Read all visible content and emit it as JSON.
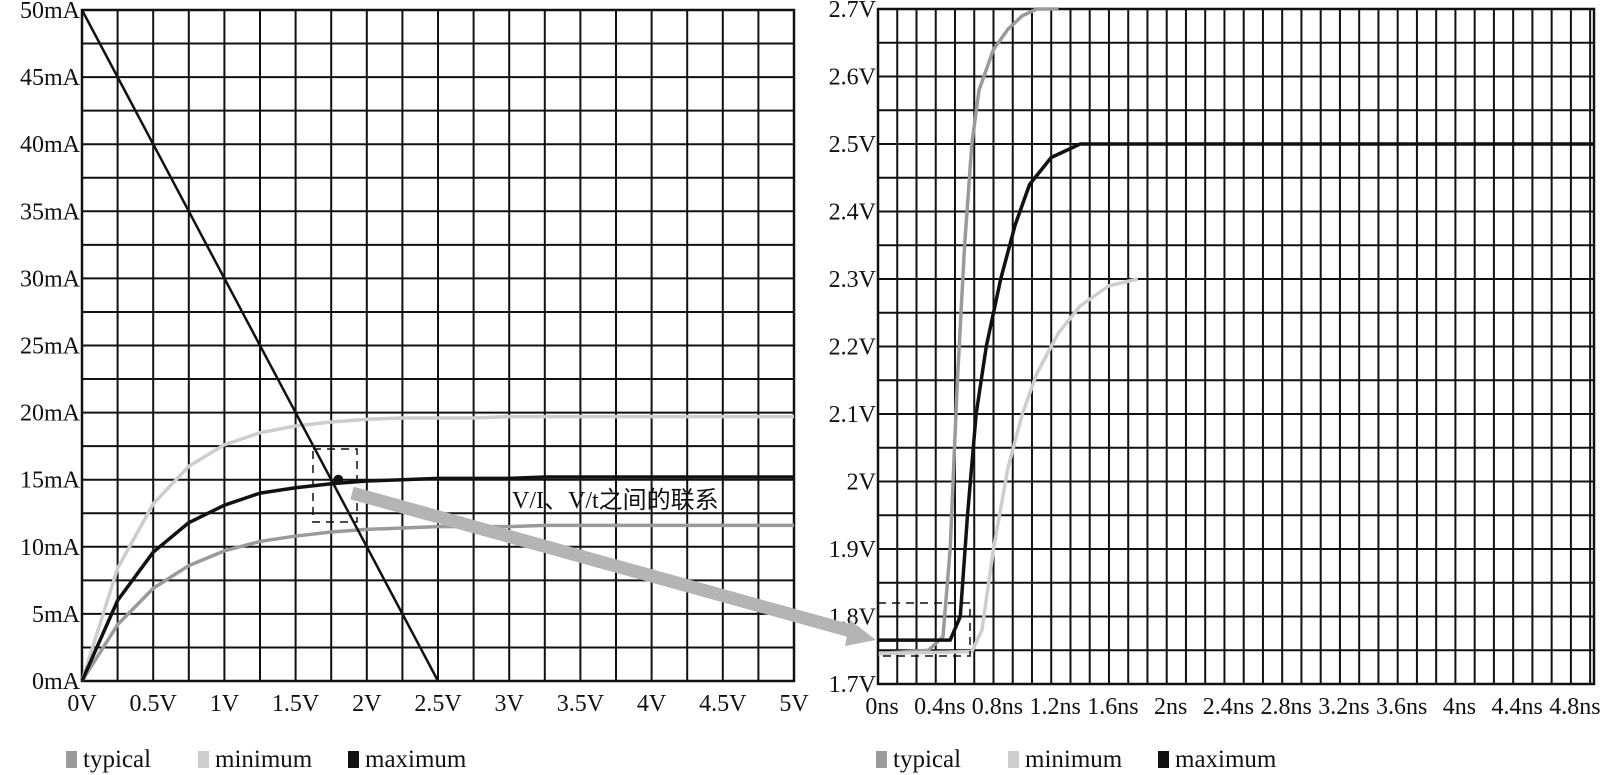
{
  "chart_data": [
    {
      "type": "line",
      "title": "",
      "xlabel": "",
      "ylabel": "",
      "xlim": [
        0,
        5
      ],
      "ylim": [
        0,
        50
      ],
      "grid": true,
      "x_ticks": [
        "0V",
        "0.5V",
        "1V",
        "1.5V",
        "2V",
        "2.5V",
        "3V",
        "3.5V",
        "4V",
        "4.5V",
        "5V"
      ],
      "x_tick_values": [
        0,
        0.5,
        1,
        1.5,
        2,
        2.5,
        3,
        3.5,
        4,
        4.5,
        5
      ],
      "y_ticks": [
        "0mA",
        "5mA",
        "10mA",
        "15mA",
        "20mA",
        "25mA",
        "30mA",
        "35mA",
        "40mA",
        "45mA",
        "50mA"
      ],
      "y_tick_values": [
        0,
        5,
        10,
        15,
        20,
        25,
        30,
        35,
        40,
        45,
        50
      ],
      "x": [
        0,
        0.25,
        0.5,
        0.75,
        1,
        1.25,
        1.5,
        1.75,
        2,
        2.25,
        2.5,
        2.75,
        3,
        3.25,
        3.5,
        3.75,
        4,
        4.25,
        4.5,
        4.75,
        5
      ],
      "series": [
        {
          "name": "typical",
          "color": "#9a9a9a",
          "values": [
            0,
            4.2,
            6.9,
            8.6,
            9.7,
            10.4,
            10.8,
            11.1,
            11.3,
            11.4,
            11.5,
            11.5,
            11.5,
            11.6,
            11.6,
            11.6,
            11.6,
            11.6,
            11.6,
            11.6,
            11.6
          ]
        },
        {
          "name": "minimum",
          "color": "#cdcdcd",
          "values": [
            0,
            8.4,
            13.2,
            16.0,
            17.6,
            18.5,
            19.0,
            19.3,
            19.5,
            19.6,
            19.6,
            19.6,
            19.7,
            19.7,
            19.7,
            19.7,
            19.7,
            19.7,
            19.7,
            19.7,
            19.7
          ]
        },
        {
          "name": "maximum",
          "color": "#111111",
          "values": [
            0,
            6.0,
            9.6,
            11.8,
            13.1,
            14.0,
            14.4,
            14.7,
            14.9,
            15.0,
            15.1,
            15.1,
            15.1,
            15.2,
            15.2,
            15.2,
            15.2,
            15.2,
            15.2,
            15.2,
            15.2
          ]
        },
        {
          "name": "load-line",
          "color": "#111111",
          "x": [
            0,
            2.5
          ],
          "values": [
            50,
            0
          ]
        }
      ],
      "operating_point": {
        "x": 1.8,
        "y": 15
      },
      "legend": [
        "typical",
        "minimum",
        "maximum"
      ],
      "legend_placement": "bottom-left"
    },
    {
      "type": "line",
      "title": "",
      "xlabel": "",
      "ylabel": "",
      "xlim": [
        0,
        4.96
      ],
      "ylim": [
        1.7,
        2.7
      ],
      "grid": true,
      "x_ticks": [
        "0ns",
        "0.4ns",
        "0.8ns",
        "1.2ns",
        "1.6ns",
        "2ns",
        "2.4ns",
        "2.8ns",
        "3.2ns",
        "3.6ns",
        "4ns",
        "4.4ns",
        "4.8ns"
      ],
      "x_tick_values": [
        0,
        0.4,
        0.8,
        1.2,
        1.6,
        2,
        2.4,
        2.8,
        3.2,
        3.6,
        4,
        4.4,
        4.8
      ],
      "y_ticks": [
        "1.7V",
        "1.8V",
        "1.9V",
        "2V",
        "2.1V",
        "2.2V",
        "2.3V",
        "2.4V",
        "2.5V",
        "2.6V",
        "2.7V"
      ],
      "y_tick_values": [
        1.7,
        1.8,
        1.9,
        2.0,
        2.1,
        2.2,
        2.3,
        2.4,
        2.5,
        2.6,
        2.7
      ],
      "series": [
        {
          "name": "typical",
          "color": "#9a9a9a",
          "x": [
            0,
            0.35,
            0.45,
            0.5,
            0.55,
            0.6,
            0.65,
            0.7,
            0.8,
            0.9,
            1.0,
            1.1,
            1.25
          ],
          "values": [
            1.745,
            1.75,
            1.77,
            1.9,
            2.15,
            2.35,
            2.5,
            2.58,
            2.64,
            2.67,
            2.69,
            2.7,
            2.7
          ]
        },
        {
          "name": "minimum",
          "color": "#cdcdcd",
          "x": [
            0,
            0.65,
            0.72,
            0.8,
            0.9,
            1.0,
            1.1,
            1.25,
            1.4,
            1.6,
            1.8
          ],
          "values": [
            1.745,
            1.748,
            1.78,
            1.9,
            2.02,
            2.1,
            2.16,
            2.22,
            2.26,
            2.29,
            2.3
          ]
        },
        {
          "name": "maximum",
          "color": "#111111",
          "x": [
            0,
            0.5,
            0.57,
            0.62,
            0.68,
            0.75,
            0.85,
            0.95,
            1.05,
            1.2,
            1.4,
            1.6,
            4.96
          ],
          "values": [
            1.765,
            1.765,
            1.8,
            1.95,
            2.1,
            2.2,
            2.3,
            2.38,
            2.44,
            2.48,
            2.5,
            2.5,
            2.5
          ]
        }
      ],
      "legend": [
        "typical",
        "minimum",
        "maximum"
      ],
      "legend_placement": "bottom-left"
    }
  ],
  "annotation": "V/I、V/t之间的联系"
}
